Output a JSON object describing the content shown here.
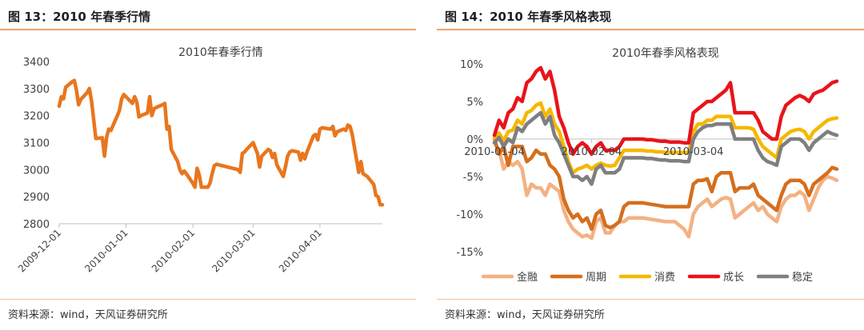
{
  "figures": [
    {
      "caption": "图 13：2010 年春季行情",
      "source": "资料来源：wind，天风证券研究所",
      "chart_data": {
        "type": "line",
        "title": "2010年春季行情",
        "xlabel": "",
        "ylabel": "",
        "ylim": [
          2800,
          3400
        ],
        "yticks": [
          "2800",
          "2900",
          "3000",
          "3100",
          "3200",
          "3300",
          "3400"
        ],
        "xticks": [
          "2009-12-01",
          "2010-01-01",
          "2010-02-01",
          "2010-03-01",
          "2010-04-01"
        ],
        "legend": false,
        "grid": false,
        "series": [
          {
            "color": "#e8761e",
            "points": [
              [
                "2009-12-01",
                3235
              ],
              [
                "2009-12-02",
                3270
              ],
              [
                "2009-12-03",
                3262
              ],
              [
                "2009-12-04",
                3305
              ],
              [
                "2009-12-07",
                3325
              ],
              [
                "2009-12-08",
                3330
              ],
              [
                "2009-12-09",
                3295
              ],
              [
                "2009-12-10",
                3240
              ],
              [
                "2009-12-11",
                3260
              ],
              [
                "2009-12-14",
                3285
              ],
              [
                "2009-12-15",
                3300
              ],
              [
                "2009-12-16",
                3255
              ],
              [
                "2009-12-17",
                3185
              ],
              [
                "2009-12-18",
                3115
              ],
              [
                "2009-12-21",
                3118
              ],
              [
                "2009-12-22",
                3050
              ],
              [
                "2009-12-23",
                3120
              ],
              [
                "2009-12-24",
                3150
              ],
              [
                "2009-12-25",
                3145
              ],
              [
                "2009-12-28",
                3200
              ],
              [
                "2009-12-29",
                3220
              ],
              [
                "2009-12-30",
                3262
              ],
              [
                "2009-12-31",
                3278
              ],
              [
                "2010-01-04",
                3245
              ],
              [
                "2010-01-05",
                3270
              ],
              [
                "2010-01-06",
                3250
              ],
              [
                "2010-01-07",
                3195
              ],
              [
                "2010-01-08",
                3200
              ],
              [
                "2010-01-11",
                3210
              ],
              [
                "2010-01-12",
                3270
              ],
              [
                "2010-01-13",
                3200
              ],
              [
                "2010-01-14",
                3225
              ],
              [
                "2010-01-15",
                3230
              ],
              [
                "2010-01-18",
                3240
              ],
              [
                "2010-01-19",
                3245
              ],
              [
                "2010-01-20",
                3150
              ],
              [
                "2010-01-21",
                3160
              ],
              [
                "2010-01-22",
                3075
              ],
              [
                "2010-01-25",
                3030
              ],
              [
                "2010-01-26",
                3000
              ],
              [
                "2010-01-27",
                2985
              ],
              [
                "2010-01-28",
                2995
              ],
              [
                "2010-01-29",
                2985
              ],
              [
                "2010-02-01",
                2950
              ],
              [
                "2010-02-02",
                2935
              ],
              [
                "2010-02-03",
                3005
              ],
              [
                "2010-02-04",
                2980
              ],
              [
                "2010-02-05",
                2935
              ],
              [
                "2010-02-08",
                2935
              ],
              [
                "2010-02-09",
                2950
              ],
              [
                "2010-02-10",
                2985
              ],
              [
                "2010-02-11",
                3015
              ],
              [
                "2010-02-12",
                3020
              ],
              [
                "2010-02-22",
                3000
              ],
              [
                "2010-02-23",
                2990
              ],
              [
                "2010-02-24",
                3060
              ],
              [
                "2010-02-25",
                3065
              ],
              [
                "2010-02-26",
                3075
              ],
              [
                "2010-03-01",
                3100
              ],
              [
                "2010-03-02",
                3080
              ],
              [
                "2010-03-03",
                3060
              ],
              [
                "2010-03-04",
                3010
              ],
              [
                "2010-03-05",
                3050
              ],
              [
                "2010-03-08",
                3075
              ],
              [
                "2010-03-09",
                3070
              ],
              [
                "2010-03-10",
                3045
              ],
              [
                "2010-03-11",
                3060
              ],
              [
                "2010-03-12",
                3018
              ],
              [
                "2010-03-15",
                2975
              ],
              [
                "2010-03-16",
                3010
              ],
              [
                "2010-03-17",
                3050
              ],
              [
                "2010-03-18",
                3065
              ],
              [
                "2010-03-19",
                3070
              ],
              [
                "2010-03-22",
                3065
              ],
              [
                "2010-03-23",
                3035
              ],
              [
                "2010-03-24",
                3060
              ],
              [
                "2010-03-25",
                3040
              ],
              [
                "2010-03-26",
                3065
              ],
              [
                "2010-03-29",
                3125
              ],
              [
                "2010-03-30",
                3130
              ],
              [
                "2010-03-31",
                3110
              ],
              [
                "2010-04-01",
                3150
              ],
              [
                "2010-04-02",
                3155
              ],
              [
                "2010-04-06",
                3150
              ],
              [
                "2010-04-07",
                3160
              ],
              [
                "2010-04-08",
                3125
              ],
              [
                "2010-04-09",
                3140
              ],
              [
                "2010-04-12",
                3150
              ],
              [
                "2010-04-13",
                3145
              ],
              [
                "2010-04-14",
                3165
              ],
              [
                "2010-04-15",
                3160
              ],
              [
                "2010-04-16",
                3130
              ],
              [
                "2010-04-19",
                2990
              ],
              [
                "2010-04-20",
                3030
              ],
              [
                "2010-04-21",
                2985
              ],
              [
                "2010-04-22",
                2980
              ],
              [
                "2010-04-23",
                2975
              ],
              [
                "2010-04-26",
                2945
              ],
              [
                "2010-04-27",
                2905
              ],
              [
                "2010-04-28",
                2900
              ],
              [
                "2010-04-29",
                2870
              ],
              [
                "2010-04-30",
                2870
              ]
            ]
          }
        ]
      }
    },
    {
      "caption": "图 14：2010 年春季风格表现",
      "source": "资料来源：wind，天风证券研究所",
      "chart_data": {
        "type": "line",
        "title": "2010年春季风格表现",
        "xlabel": "",
        "ylabel": "",
        "ylim": [
          -15,
          10
        ],
        "yticks": [
          "-15%",
          "-10%",
          "-5%",
          "0%",
          "5%",
          "10%"
        ],
        "xticks": [
          "2010-01-04",
          "2010-02-04",
          "2010-03-04"
        ],
        "legend": "bottom",
        "grid": false,
        "series": [
          {
            "name": "金融",
            "color": "#f4b183",
            "values": [
              -0.5,
              -1.5,
              -4,
              -3,
              -3.5,
              -3,
              -4,
              -7.5,
              -6,
              -6.5,
              -6.5,
              -7.5,
              -6,
              -6.5,
              -7,
              -9.5,
              -11,
              -12,
              -12.5,
              -13,
              -12.8,
              -13.2,
              -11,
              -10.5,
              -12.5,
              -12.5,
              -11.5,
              -11,
              -11,
              -10.5,
              -10.5,
              -10.5,
              -10.5,
              -10.6,
              -10.7,
              -10.8,
              -10.9,
              -11,
              -11,
              -11,
              -11.5,
              -12,
              -13,
              -10,
              -9,
              -8.5,
              -8,
              -9,
              -8.5,
              -8,
              -7.8,
              -8,
              -10.5,
              -10,
              -9.5,
              -9,
              -8.5,
              -9.5,
              -9,
              -10,
              -10.5,
              -11,
              -9,
              -8,
              -7.5,
              -7.5,
              -7,
              -7.5,
              -9.5,
              -8,
              -6.5,
              -5.5,
              -5,
              -5.2,
              -5.5
            ]
          },
          {
            "name": "周期",
            "color": "#d46f1e",
            "values": [
              0,
              -2,
              -1,
              -3.5,
              -1,
              -1,
              -1,
              -3,
              -2.5,
              -1.5,
              -2,
              -2,
              -3.5,
              -4,
              -5,
              -8,
              -9.5,
              -10.5,
              -10,
              -11,
              -10.5,
              -12,
              -10,
              -9.5,
              -11.5,
              -11.8,
              -11.5,
              -11,
              -9,
              -8.5,
              -8.5,
              -8.5,
              -8.5,
              -8.6,
              -8.7,
              -8.8,
              -8.9,
              -9,
              -9,
              -9,
              -9,
              -9,
              -9,
              -6,
              -5.5,
              -5.5,
              -5.3,
              -7,
              -5,
              -4.5,
              -4.5,
              -4.5,
              -7,
              -6.5,
              -6.5,
              -6.5,
              -6,
              -7.5,
              -8,
              -8.5,
              -9,
              -9.5,
              -7.5,
              -6,
              -5.5,
              -5.5,
              -5.5,
              -6,
              -7.5,
              -6,
              -5.5,
              -5,
              -4.5,
              -3.8,
              -4
            ]
          },
          {
            "name": "消费",
            "color": "#f5b800",
            "values": [
              0,
              0.8,
              -0.2,
              1,
              1.2,
              2.5,
              2,
              3.5,
              3.8,
              4.5,
              4.8,
              3,
              4,
              2,
              1,
              -1,
              -3,
              -4.5,
              -4,
              -3.8,
              -3.5,
              -4,
              -3.5,
              -3.2,
              -3.5,
              -3.6,
              -3.5,
              -2.5,
              -1.5,
              -1.5,
              -1.5,
              -1.5,
              -1.5,
              -1.6,
              -1.6,
              -1.7,
              -1.7,
              -1.8,
              -1.8,
              -1.8,
              -1.8,
              -1.8,
              -1.8,
              1,
              2,
              2,
              2.5,
              2.5,
              3,
              3,
              3,
              3,
              1.5,
              1.5,
              1.5,
              1.5,
              1.3,
              0,
              -1,
              -1.5,
              -2,
              -2.5,
              0,
              0.5,
              1,
              1.2,
              1.3,
              1,
              0,
              1,
              1.5,
              2,
              2.5,
              2.7,
              2.8
            ]
          },
          {
            "name": "成长",
            "color": "#e8141a",
            "values": [
              0.5,
              2.5,
              1.5,
              3.5,
              4,
              5.5,
              5,
              7.5,
              8,
              9,
              9.5,
              8,
              9,
              6.5,
              3,
              1.5,
              -0.5,
              -2,
              -1,
              -0.5,
              -1,
              -2,
              -1,
              -0.5,
              -1.5,
              -1.5,
              -1.5,
              -1,
              0,
              0,
              0,
              0,
              0,
              -0.1,
              -0.1,
              -0.2,
              -0.3,
              -0.3,
              -0.4,
              -0.4,
              -0.4,
              -0.5,
              -0.5,
              3.5,
              4,
              4.5,
              5,
              5,
              5.5,
              6,
              6.5,
              7.5,
              3.5,
              3.5,
              3.5,
              3.5,
              3.5,
              2.5,
              1,
              0.5,
              0,
              0,
              3,
              4.5,
              5,
              5.5,
              5.8,
              5.5,
              5,
              6,
              6.3,
              6.5,
              7,
              7.5,
              7.7
            ]
          },
          {
            "name": "稳定",
            "color": "#7f7f7f",
            "values": [
              -0.5,
              0.2,
              -1,
              0,
              -0.5,
              1.5,
              1,
              2,
              2.5,
              3,
              3.5,
              2,
              3,
              0.5,
              -0.5,
              -2,
              -3.5,
              -5,
              -5,
              -5.5,
              -5,
              -6,
              -4,
              -3.5,
              -4.5,
              -4.5,
              -4.5,
              -4,
              -2.5,
              -2.5,
              -2.5,
              -2.5,
              -2.5,
              -2.6,
              -2.6,
              -2.7,
              -2.8,
              -2.8,
              -2.9,
              -2.9,
              -2.9,
              -3,
              -3,
              0,
              1,
              1.5,
              1.8,
              1.8,
              2,
              2,
              2,
              2,
              0,
              0,
              0,
              0,
              0,
              -1.5,
              -2.5,
              -3,
              -3.2,
              -3.5,
              -1,
              -0.5,
              0,
              0,
              0,
              -0.5,
              -1.5,
              -0.5,
              0,
              0.5,
              1,
              0.7,
              0.5
            ]
          }
        ]
      }
    }
  ]
}
